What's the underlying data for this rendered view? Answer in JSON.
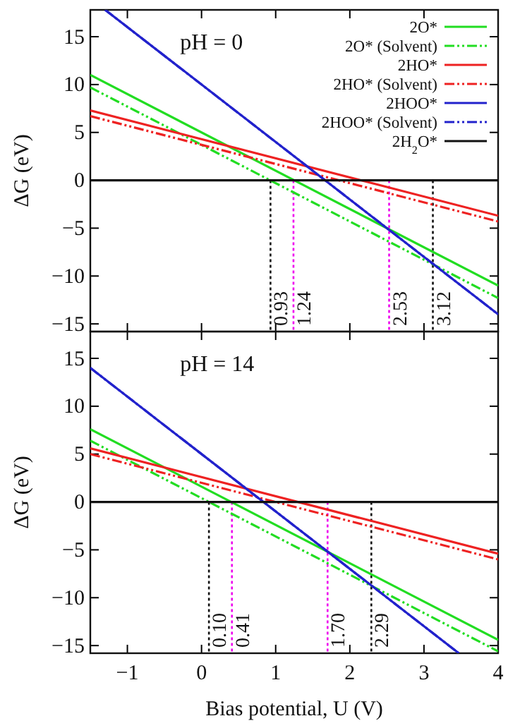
{
  "chart_data": [
    {
      "type": "line",
      "annotations": [
        "pH = 0"
      ],
      "ylabel": "ΔG (eV)",
      "xlim": [
        -1.5,
        4
      ],
      "ylim": [
        -15.8,
        17.8
      ],
      "xticks": [
        -1,
        0,
        1,
        2,
        3,
        4
      ],
      "yticks": [
        -15,
        -10,
        -5,
        0,
        5,
        10,
        15
      ],
      "tick_labels": "y",
      "legend": "top right",
      "grid": false,
      "line_style": "solid",
      "series": [
        {
          "name": "2O*",
          "color": "#22dd22",
          "x": [
            -1.5,
            4
          ],
          "values": [
            11,
            -11
          ]
        },
        {
          "name": "2O* (Solvent)",
          "color": "#22dd22",
          "line_style": "dashed",
          "x": [
            -1.5,
            4
          ],
          "values": [
            9.7,
            -12.3
          ]
        },
        {
          "name": "2HO*",
          "color": "#ee2222",
          "x": [
            -1.5,
            4
          ],
          "values": [
            7.3,
            -3.7
          ]
        },
        {
          "name": "2HO* (Solvent)",
          "color": "#ee2222",
          "line_style": "dashed",
          "x": [
            -1.5,
            4
          ],
          "values": [
            6.7,
            -4.3
          ]
        },
        {
          "name": "2HOO*",
          "color": "#2222cc",
          "x": [
            -1.3,
            4
          ],
          "values": [
            17.8,
            -14
          ]
        },
        {
          "name": "2HOO* (Solvent)",
          "color": "#2222cc",
          "line_style": "dashed",
          "x": [
            -1.3,
            4
          ],
          "values": [
            17.8,
            -14
          ]
        },
        {
          "name": "2H$_{2}$O*",
          "color": "#111111",
          "x": [
            -1.5,
            4
          ],
          "values": [
            0,
            0
          ]
        }
      ],
      "ref_lines": [
        {
          "axis": "x",
          "value": 0.93,
          "label": "0.93",
          "color": "#111111",
          "line_style": "dotted"
        },
        {
          "axis": "x",
          "value": 1.24,
          "label": "1.24",
          "color": "#ee00ee",
          "line_style": "dotted"
        },
        {
          "axis": "x",
          "value": 2.53,
          "label": "2.53",
          "color": "#ee00ee",
          "line_style": "dotted"
        },
        {
          "axis": "x",
          "value": 3.12,
          "label": "3.12",
          "color": "#111111",
          "line_style": "dotted"
        }
      ]
    },
    {
      "type": "line",
      "annotations": [
        "pH = 14"
      ],
      "ylabel": "ΔG (eV)",
      "xlabel": "Bias potential, U (V)",
      "xlim": [
        -1.5,
        4
      ],
      "ylim": [
        -15.8,
        17.8
      ],
      "xticks": [
        -1,
        0,
        1,
        2,
        3,
        4
      ],
      "yticks": [
        -15,
        -10,
        -5,
        0,
        5,
        10,
        15
      ],
      "grid": false,
      "line_style": "solid",
      "series": [
        {
          "color": "#22dd22",
          "x": [
            -1.5,
            4
          ],
          "values": [
            7.6,
            -14.4
          ]
        },
        {
          "color": "#22dd22",
          "line_style": "dashed",
          "x": [
            -1.5,
            4
          ],
          "values": [
            6.4,
            -15.6
          ]
        },
        {
          "color": "#ee2222",
          "x": [
            -1.5,
            4
          ],
          "values": [
            5.6,
            -5.4
          ]
        },
        {
          "color": "#ee2222",
          "line_style": "dashed",
          "x": [
            -1.5,
            4
          ],
          "values": [
            5,
            -6
          ]
        },
        {
          "color": "#2222cc",
          "x": [
            -1.5,
            3.47
          ],
          "values": [
            14,
            -15.8
          ]
        },
        {
          "color": "#2222cc",
          "line_style": "dashed",
          "x": [
            -1.5,
            3.47
          ],
          "values": [
            14,
            -15.8
          ]
        },
        {
          "color": "#111111",
          "x": [
            -1.5,
            4
          ],
          "values": [
            0,
            0
          ]
        }
      ],
      "ref_lines": [
        {
          "axis": "x",
          "value": 0.1,
          "label": "0.10",
          "color": "#111111",
          "line_style": "dotted"
        },
        {
          "axis": "x",
          "value": 0.41,
          "label": "0.41",
          "color": "#ee00ee",
          "line_style": "dotted"
        },
        {
          "axis": "x",
          "value": 1.7,
          "label": "1.70",
          "color": "#ee00ee",
          "line_style": "dotted"
        },
        {
          "axis": "x",
          "value": 2.29,
          "label": "2.29",
          "color": "#111111",
          "line_style": "dotted"
        }
      ]
    }
  ]
}
